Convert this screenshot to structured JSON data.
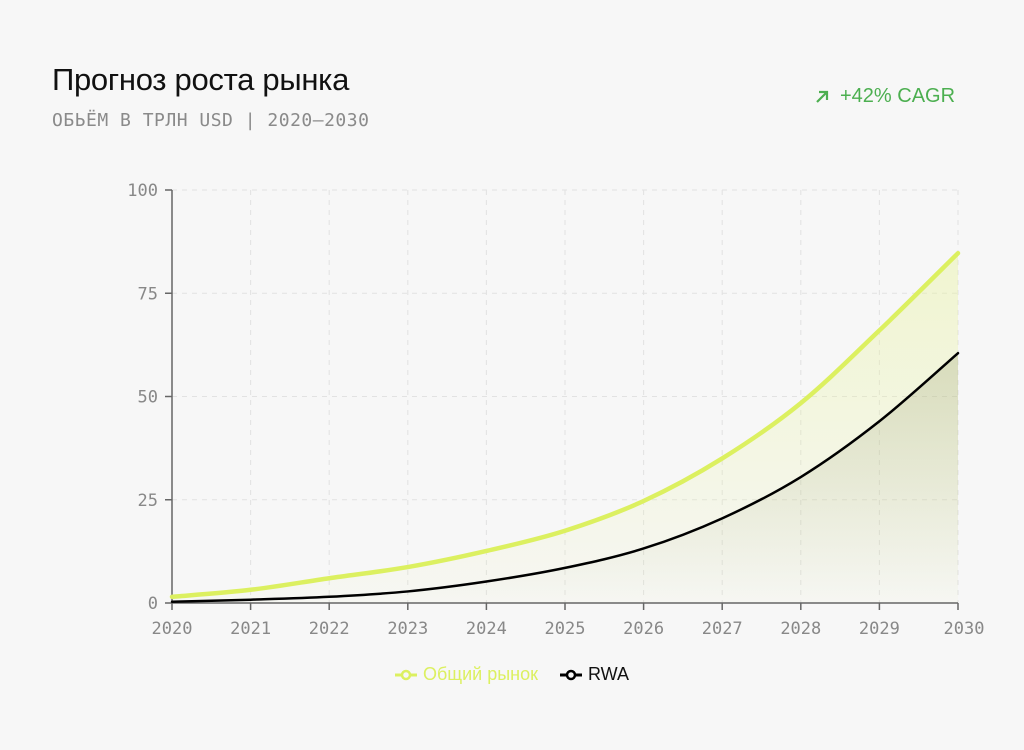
{
  "header": {
    "title": "Прогноз роста рынка",
    "subtitle": "ОБЬЁМ В ТРЛН USD | 2020–2030",
    "badge": "+42% CAGR",
    "badge_icon": "arrow-up-right-icon"
  },
  "colors": {
    "accent": "#dcf060",
    "rwa": "#000000",
    "badge": "#4caf50"
  },
  "chart_data": {
    "type": "area",
    "title": "Прогноз роста рынка",
    "xlabel": "",
    "ylabel": "",
    "x": [
      "2020",
      "2021",
      "2022",
      "2023",
      "2024",
      "2025",
      "2026",
      "2027",
      "2028",
      "2029",
      "2030"
    ],
    "ylim": [
      0,
      100
    ],
    "yticks": [
      "0",
      "25",
      "50",
      "75",
      "100"
    ],
    "grid": true,
    "legend_position": "bottom-center",
    "series": [
      {
        "name": "Общий рынок",
        "color": "#dcf060",
        "values": [
          1.5,
          3.2,
          6,
          8.7,
          12.6,
          17.5,
          24.7,
          35,
          48.4,
          66,
          84.7
        ]
      },
      {
        "name": "RWA",
        "color": "#000000",
        "values": [
          0.3,
          0.8,
          1.5,
          2.8,
          5.2,
          8.5,
          13.2,
          20.5,
          30.5,
          44,
          60.5
        ]
      }
    ]
  }
}
